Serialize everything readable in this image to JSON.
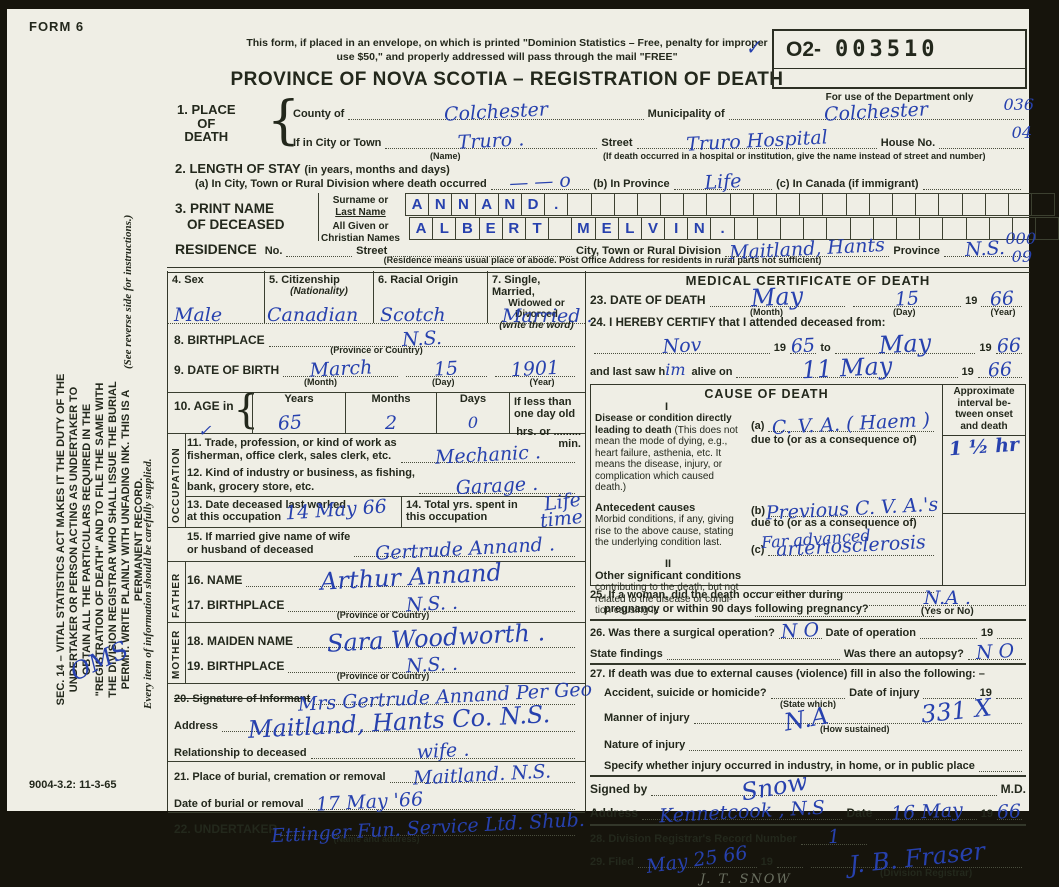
{
  "meta": {
    "form_code": "FORM 6",
    "print_code": "9004-3.2: 11-3-65",
    "reg_prefix": "O2-",
    "reg_number": "003510",
    "dept_caption": "For use of the Department only",
    "dept_code_1": "036",
    "dept_code_2": "04",
    "residence_code_1": "000",
    "residence_code_2": "09",
    "checkmark": "✓",
    "scribble": "OMS"
  },
  "sidebar": {
    "sec14": "SEC. 14 – VITAL STATISTICS ACT MAKES IT THE DUTY OF THE UNDERTAKER OR PERSON ACTING AS UNDERTAKER TO OBTAIN ALL THE PARTICULARS REQUIRED IN THE \"REGISTRATION OF DEATH\" AND TO FILE THE SAME WITH THE DIVISION REGISTRAR WHO SHALL ISSUE THE BURIAL PERMIT. WRITE PLAINLY WITH UNFADING INK. THIS IS A PERMANENT RECORD.",
    "see_reverse": "(See reverse side for instructions.)",
    "every_item": "Every item of information should be carefully supplied."
  },
  "header": {
    "notice_line1": "This form, if placed in an envelope, on which is printed \"Dominion Statistics – Free, penalty for improper",
    "notice_line2": "use $50,\" and properly addressed will pass through the mail \"FREE\"",
    "title": "PROVINCE OF NOVA SCOTIA – REGISTRATION OF DEATH"
  },
  "f1": {
    "num": "1.",
    "label1": "PLACE",
    "label2": "OF",
    "label3": "DEATH",
    "county_label": "County of",
    "county_value": "Colchester",
    "municipality_label": "Municipality of",
    "municipality_value": "Colchester",
    "city_label": "If in City or Town",
    "city_value": "Truro .",
    "city_caption": "(Name)",
    "street_label": "Street",
    "street_value": "Truro Hospital",
    "street_caption": "(If death occurred in a hospital or institution, give the name instead of street and number)",
    "house_label": "House No."
  },
  "f2": {
    "num": "2.",
    "label": "LENGTH OF STAY",
    "label_paren": "(in years, months and days)",
    "a_label": "(a) In City, Town or Rural Division where death occurred",
    "a_value": "— — o",
    "b_label": "(b) In Province",
    "b_value": "Life",
    "c_label": "(c) In Canada (if immigrant)"
  },
  "f3": {
    "num": "3.",
    "label1": "PRINT NAME",
    "label2": "OF DECEASED",
    "surname_label1": "Surname or",
    "surname_label2": "Last Name",
    "given_label1": "All Given or",
    "given_label2": "Christian Names",
    "surname_letters": [
      "A",
      "N",
      "N",
      "A",
      "N",
      "D",
      ".",
      "",
      "",
      "",
      "",
      "",
      "",
      "",
      "",
      "",
      "",
      "",
      "",
      "",
      "",
      "",
      "",
      "",
      "",
      "",
      "",
      ""
    ],
    "given_letters": [
      "A",
      "L",
      "B",
      "E",
      "R",
      "T",
      "",
      "M",
      "E",
      "L",
      "V",
      "I",
      "N",
      ".",
      "",
      "",
      "",
      "",
      "",
      "",
      "",
      "",
      "",
      "",
      "",
      "",
      "",
      ""
    ]
  },
  "residence": {
    "label": "RESIDENCE",
    "no_label": "No.",
    "street_label": "Street",
    "city_label": "City, Town or Rural Division",
    "city_value": "Maitland, Hants",
    "province_label": "Province",
    "province_value": "N.S.",
    "caption": "(Residence means usual place of abode. Post Office Address for residents in rural parts not sufficient)"
  },
  "f4": {
    "label": "4. Sex",
    "value": "Male"
  },
  "f5": {
    "label": "5. Citizenship",
    "label2": "(Nationality)",
    "value": "Canadian"
  },
  "f6": {
    "label": "6. Racial Origin",
    "value": "Scotch"
  },
  "f7": {
    "label": "7. Single, Married,",
    "label2": "Widowed or Divorced",
    "label3": "(write the word)",
    "value": "Married ."
  },
  "f8": {
    "label": "8. BIRTHPLACE",
    "value": "N.S.",
    "caption": "(Province or Country)"
  },
  "f9": {
    "label": "9. DATE OF BIRTH",
    "month": "March",
    "day": "15",
    "year": "1901",
    "cap_month": "(Month)",
    "cap_day": "(Day)",
    "cap_year": "(Year)"
  },
  "f10": {
    "label": "10. AGE in",
    "years_label": "Years",
    "months_label": "Months",
    "days_label": "Days",
    "less_label": "If less than one day old",
    "less_label2": "hrs. or",
    "less_label3": "min.",
    "years": "65",
    "months": "2",
    "days": "0",
    "check": "✓"
  },
  "occupation_label": "OCCUPATION",
  "f11": {
    "label1": "11. Trade, profession, or kind of work as",
    "label2": "fisherman, office clerk, sales clerk, etc.",
    "value": "Mechanic ."
  },
  "f12": {
    "label1": "12. Kind of industry or business, as fishing,",
    "label2": "bank, grocery store, etc.",
    "value": "Garage ."
  },
  "f13": {
    "label1": "13. Date deceased last worked",
    "label2": "at this occupation",
    "value": "14 May 66"
  },
  "f14": {
    "label1": "14. Total yrs. spent in",
    "label2": "this occupation",
    "value1": "Life",
    "value2": "time"
  },
  "f15": {
    "label1": "15. If married give name of wife",
    "label2": "or husband of deceased",
    "value": "Gertrude   Annand ."
  },
  "father_label": "FATHER",
  "f16": {
    "label": "16. NAME",
    "value": "Arthur   Annand"
  },
  "f17": {
    "label": "17. BIRTHPLACE",
    "value": "N.S. .",
    "caption": "(Province or Country)"
  },
  "mother_label": "MOTHER",
  "f18": {
    "label": "18. MAIDEN NAME",
    "value": "Sara   Woodworth ."
  },
  "f19": {
    "label": "19. BIRTHPLACE",
    "value": "N.S. .",
    "caption": "(Province or Country)"
  },
  "f20": {
    "label": "20. Signature of Informant",
    "value": "Mrs Gertrude Annand Per Geo",
    "address_label": "Address",
    "address_value": "Maitland, Hants Co. N.S.",
    "rel_label": "Relationship to deceased",
    "rel_value": "wife ."
  },
  "f21": {
    "label": "21. Place of burial, cremation or removal",
    "value": "Maitland. N.S.",
    "date_label": "Date of burial or removal",
    "date_value": "17 May '66"
  },
  "f22": {
    "label": "22. UNDERTAKER",
    "value": "Ettinger Fun. Service Ltd. Shub.",
    "caption": "(Name and address)"
  },
  "medical": {
    "heading": "MEDICAL CERTIFICATE OF DEATH",
    "f23": {
      "label": "23. DATE OF DEATH",
      "month": "May",
      "day": "15",
      "year_prefix": "19",
      "year": "66",
      "cap_month": "(Month)",
      "cap_day": "(Day)",
      "cap_year": "(Year)"
    },
    "f24": {
      "label": "24. I HEREBY CERTIFY that I attended deceased from:",
      "from_value": "Nov",
      "from_pre": "19",
      "from_year": "65",
      "to_label": "to",
      "to_value": "May",
      "to_pre": "19",
      "to_year": "66",
      "last_label1": "and last saw h",
      "last_him": "im",
      "last_label2": "alive on",
      "last_value": "11 May",
      "last_pre": "19",
      "last_year": "66"
    },
    "cause": {
      "heading": "CAUSE OF DEATH",
      "interval_header": "Approximate interval be- tween onset and death",
      "roman1": "I",
      "desc1_bold": "Disease or condition directly lead­ing to death",
      "desc1_rest": "(This does not mean the mode of dying, e.g., heart fail­ure, asthenia, etc. It means the disease, injury, or complication which caused death.)",
      "a_label": "(a)",
      "a_value": "C. V. A. ( Haem )",
      "a_dueto": "due to (or as a consequence of)",
      "interval_a": "1 ½ hr",
      "desc2_bold": "Antecedent causes",
      "desc2_rest": "Morbid conditions, if any, giving rise to the above cause, stating the underlying condition last.",
      "b_label": "(b)",
      "b_value": "Previous   C. V. A.'s",
      "b_dueto": "due to (or as a consequence of)",
      "b_extra": "Far advanced",
      "c_label": "(c)",
      "c_value": "arteriosclerosis",
      "roman2": "II",
      "desc3_bold": "Other significant conditions",
      "desc3_rest": "contributing to the death, but not related to the disease or condi­tion causing it."
    },
    "f25": {
      "label1": "25. If a woman, did the death occur either during",
      "label2": "pregnancy or within 90 days following pregnancy?",
      "value": "N.A .",
      "caption": "(Yes or No)"
    },
    "f26": {
      "label": "26. Was there a surgical operation?",
      "op_value": "N O",
      "date_label": "Date of operation",
      "pre": "19",
      "findings_label": "State findings",
      "autopsy_label": "Was there an autopsy?",
      "autopsy_value": "N O"
    },
    "f27": {
      "label": "27. If death was due to external causes (violence) fill in also the following: –",
      "ash_label": "Accident, suicide or homicide?",
      "ash_caption": "(State which)",
      "injurydate_label": "Date of injury",
      "pre": "19",
      "manner_label": "Manner of injury",
      "manner_value": "N.A",
      "manner_caption": "(How sustained)",
      "code_value": "331 X",
      "nature_label": "Nature of injury",
      "specify_label": "Specify whether injury occurred in industry, in home, or in public place"
    },
    "signed": {
      "label": "Signed by",
      "signature": "Snow",
      "md": "M.D.",
      "address_label": "Address",
      "address_value": "Kennetcook ,  N.S",
      "date_label": "Date",
      "date_value": "16 May",
      "pre": "19",
      "year": "66"
    },
    "f28": {
      "label": "28. Division Registrar's Record Number",
      "value": "1"
    },
    "f29": {
      "label": "29. Filed",
      "value": "May 25  66",
      "pre": "19",
      "registrar_sig": "J. B. Fraser",
      "caption": "(Division Registrar)",
      "printed_name": "J. T. SNOW"
    }
  }
}
